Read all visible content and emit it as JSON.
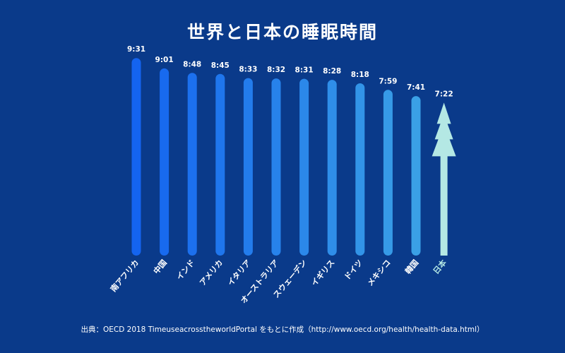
{
  "chart_data": {
    "type": "bar",
    "title": "世界と日本の睡眠時間",
    "xlabel": "",
    "ylabel": "",
    "unit": "h:mm",
    "categories": [
      "南アフリカ",
      "中国",
      "インド",
      "アメリカ",
      "イタリア",
      "オーストラリア",
      "スウェーデン",
      "イギリス",
      "ドイツ",
      "メキシコ",
      "韓国",
      "日本"
    ],
    "values": [
      571,
      541,
      528,
      525,
      513,
      512,
      511,
      508,
      498,
      479,
      461,
      442
    ],
    "value_labels": [
      "9:31",
      "9:01",
      "8:48",
      "8:45",
      "8:33",
      "8:32",
      "8:31",
      "8:28",
      "8:18",
      "7:59",
      "7:41",
      "7:22"
    ],
    "ylim": [
      0,
      600
    ],
    "grid": false,
    "legend": "none",
    "highlight_category": "日本",
    "highlight_style": "arrow",
    "colors": {
      "background": "#0a3a8a",
      "bar_start": "#1464f0",
      "bar_end": "#3aa0e6",
      "highlight": "#b4e8e4",
      "text": "#ffffff"
    }
  },
  "source": "出典：OECD 2018 TimeuseacrosstheworldPortal をもとに作成（http://www.oecd.org/health/health-data.html）"
}
